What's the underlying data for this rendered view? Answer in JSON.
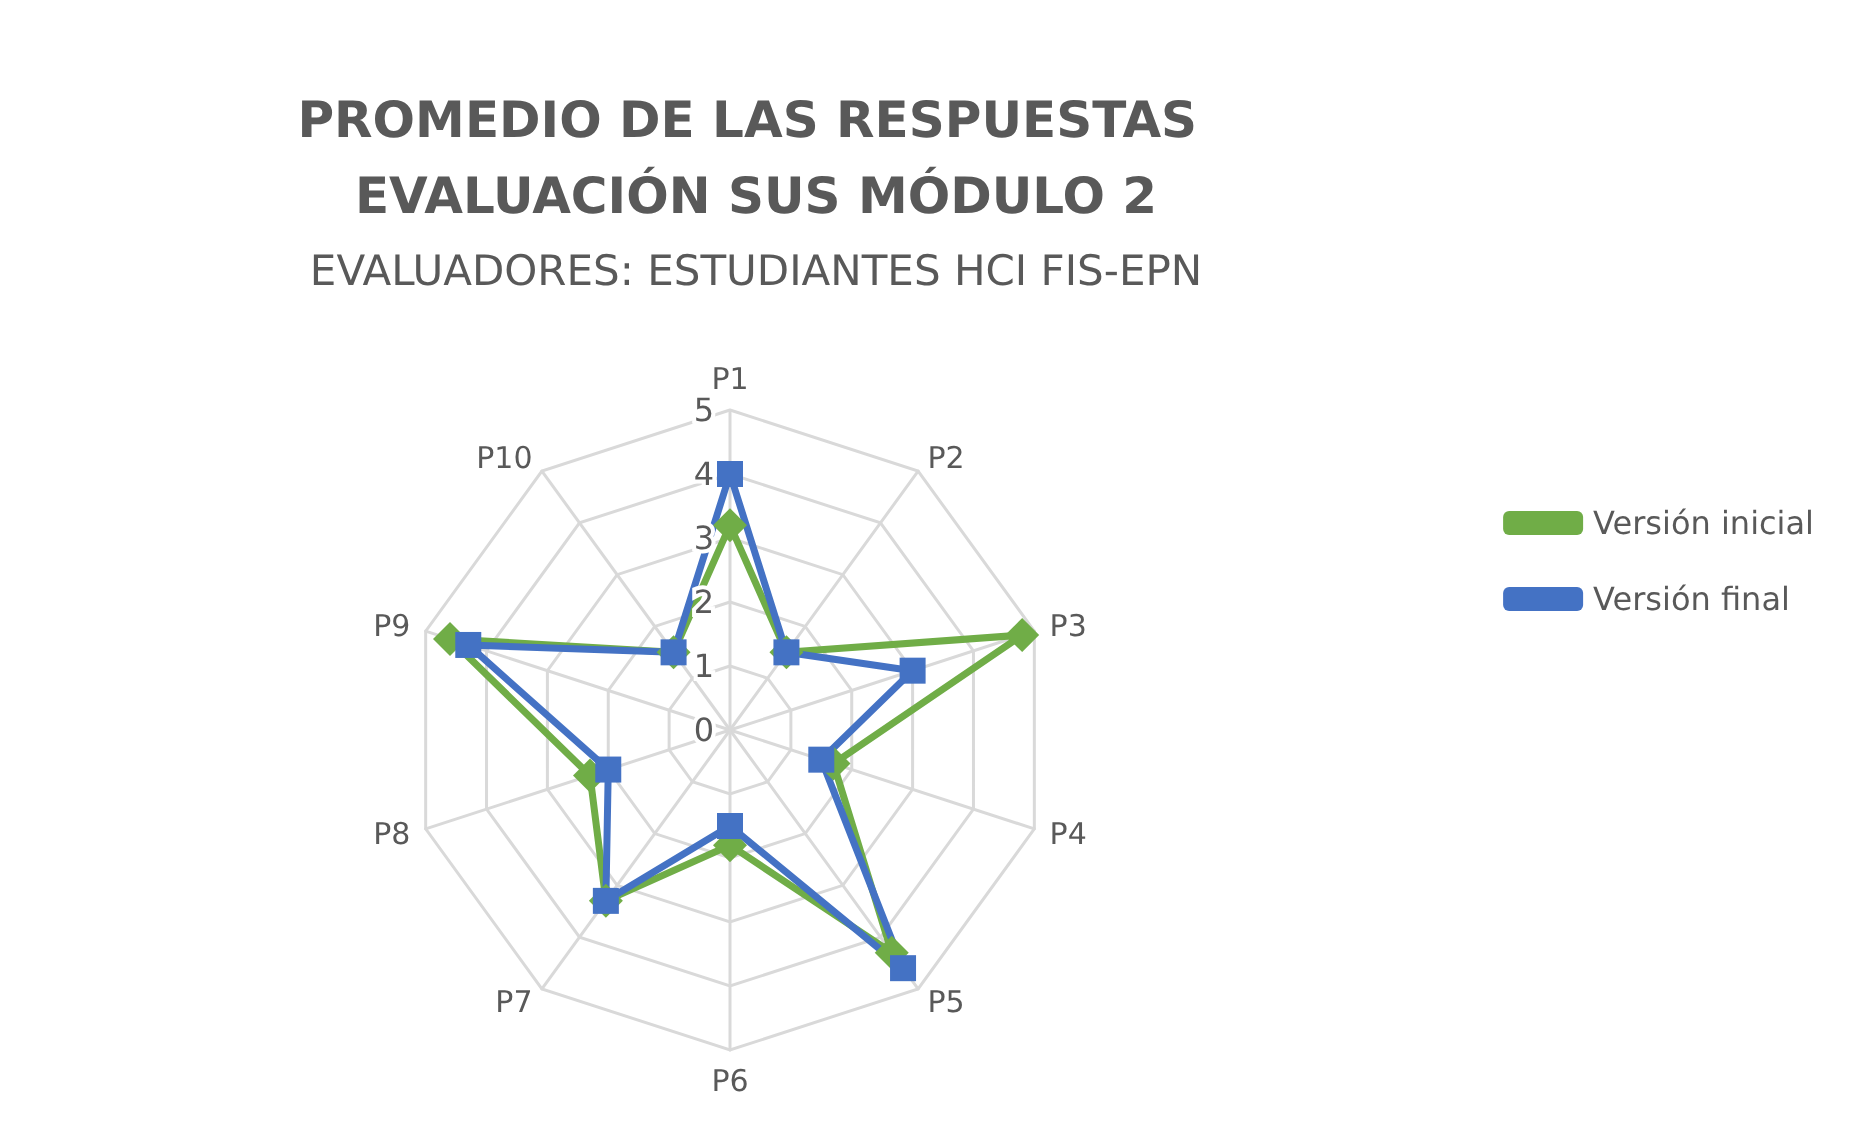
{
  "chart_data": {
    "type": "radar",
    "title": "PROMEDIO DE LAS RESPUESTAS EVALUACIÓN SUS MÓDULO 2",
    "subtitle": "EVALUADORES: ESTUDIANTES HCI FIS-EPN",
    "categories": [
      "P1",
      "P2",
      "P3",
      "P4",
      "P5",
      "P6",
      "P7",
      "P8",
      "P9",
      "P10"
    ],
    "series": [
      {
        "name": "Versión inicial",
        "color": "#70ad47",
        "marker": "diamond",
        "values": [
          3.2,
          1.5,
          4.8,
          1.7,
          4.3,
          1.8,
          3.3,
          2.3,
          4.6,
          1.5
        ]
      },
      {
        "name": "Versión final",
        "color": "#4472c4",
        "marker": "square",
        "values": [
          4.0,
          1.5,
          3.0,
          1.5,
          4.6,
          1.5,
          3.3,
          2.0,
          4.3,
          1.5
        ]
      }
    ],
    "ylim": [
      0,
      5
    ],
    "yticks": [
      0,
      1,
      2,
      3,
      4,
      5
    ],
    "grid": true,
    "legend": "right"
  }
}
